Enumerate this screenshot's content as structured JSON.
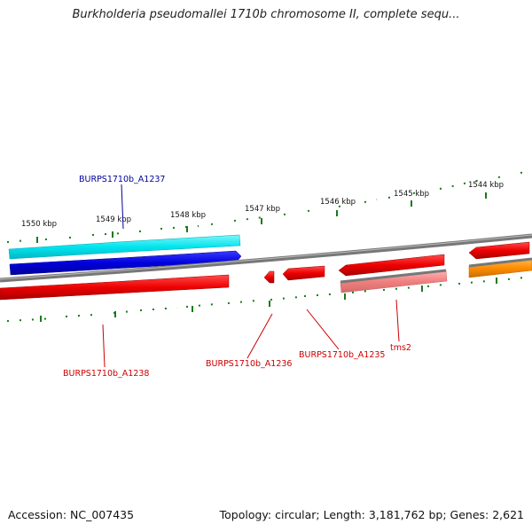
{
  "title": "Burkholderia pseudomallei 1710b chromosome II, complete sequ...",
  "footer": {
    "accession": "Accession: NC_007435",
    "topology": "Topology: circular; Length: 3,181,762 bp; Genes: 2,621"
  },
  "scale_labels": [
    "1550 kbp",
    "1549 kbp",
    "1548 kbp",
    "1547 kbp",
    "1546 kbp",
    "1545 kbp",
    "1544 kbp"
  ],
  "genes": [
    {
      "name": "BURPS1710b_A1237",
      "strand": "forward",
      "color": "#00e5ee",
      "label_color": "#000099"
    },
    {
      "name": "BURPS1710b_A1238",
      "strand": "reverse",
      "color": "#ee0000",
      "label_color": "#cc0000"
    },
    {
      "name": "BURPS1710b_A1236",
      "strand": "reverse",
      "color": "#ee0000",
      "label_color": "#cc0000"
    },
    {
      "name": "BURPS1710b_A1235",
      "strand": "reverse",
      "color": "#ee0000",
      "label_color": "#cc0000"
    },
    {
      "name": "tms2",
      "strand": "reverse",
      "color": "#f08080",
      "label_color": "#cc0000"
    }
  ],
  "colors": {
    "cds_forward": "#0000dd",
    "gene_forward": "#00e5ee",
    "gene_reverse": "#ee0000",
    "rna": "#ff8c00",
    "ticks": "#1a7a1a",
    "backbone": "#888888"
  }
}
